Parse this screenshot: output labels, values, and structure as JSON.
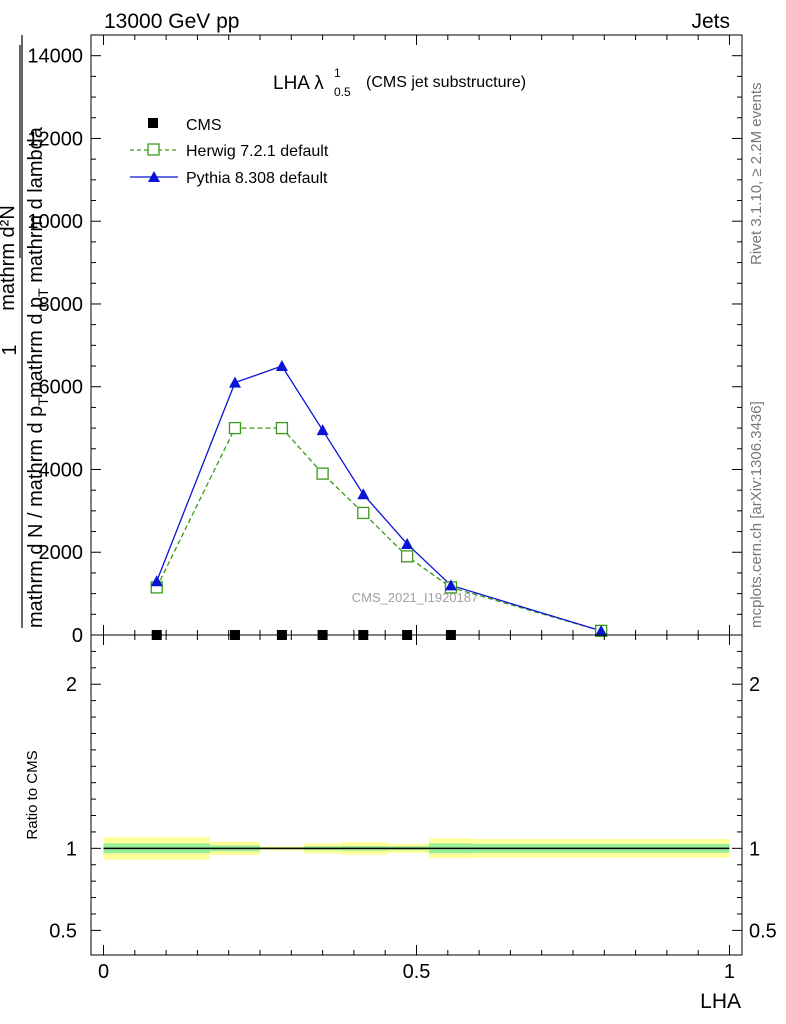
{
  "header": {
    "left": "13000 GeV pp",
    "right": "Jets"
  },
  "side_labels": {
    "rivet": "Rivet 3.1.10, ≥ 2.2M events",
    "mcplots": "mcplots.cern.ch [arXiv:1306.3436]"
  },
  "watermark": "CMS_2021_I1920187",
  "colors": {
    "cms": "#000000",
    "herwig": "#3a9a1a",
    "pythia": "#0a14d6",
    "band_outer": "#ffff99",
    "band_inner": "#99ee99"
  },
  "chart_data": [
    {
      "type": "line",
      "panel": "main",
      "title": {
        "main": "LHA λ",
        "sup": "1",
        "sub": "0.5",
        "suffix": "(CMS jet substructure)"
      },
      "ylabel": {
        "num_1": "1",
        "den_1": "mathrm d N / mathrm d p",
        "den_1_sub": "T",
        "num_2": "mathrm d²N",
        "den_2": "mathrm d p",
        "den_2_sub": "T",
        "den_2_tail": " mathrm d lambda"
      },
      "xlim": [
        -0.02,
        1.02
      ],
      "ylim": [
        0,
        14500
      ],
      "yticks": [
        0,
        2000,
        4000,
        6000,
        8000,
        10000,
        12000,
        14000
      ],
      "ytick_labels": [
        "0",
        "2000",
        "4000",
        "6000",
        "8000",
        "10000",
        "12000",
        "14000"
      ],
      "legend_position": "top-left",
      "series": [
        {
          "name": "CMS",
          "marker": "square-filled",
          "x": [
            0.085,
            0.21,
            0.285,
            0.35,
            0.415,
            0.485,
            0.555
          ],
          "y": [
            0,
            0,
            0,
            0,
            0,
            0,
            0
          ]
        },
        {
          "name": "Herwig 7.2.1 default",
          "marker": "square-open",
          "line": "dashed",
          "x": [
            0.085,
            0.21,
            0.285,
            0.35,
            0.415,
            0.485,
            0.555,
            0.795
          ],
          "y": [
            1150,
            5000,
            5000,
            3900,
            2950,
            1900,
            1150,
            100
          ]
        },
        {
          "name": "Pythia 8.308 default",
          "marker": "triangle-filled",
          "line": "solid",
          "x": [
            0.085,
            0.21,
            0.285,
            0.35,
            0.415,
            0.485,
            0.555,
            0.795
          ],
          "y": [
            1300,
            6100,
            6500,
            4950,
            3400,
            2200,
            1200,
            100
          ]
        }
      ]
    },
    {
      "type": "area",
      "panel": "ratio",
      "ylabel": "Ratio to CMS",
      "xlabel": "LHA",
      "xlim": [
        -0.02,
        1.02
      ],
      "ylim": [
        0.35,
        2.3
      ],
      "yticks": [
        0.5,
        1,
        2
      ],
      "ytick_labels": [
        "0.5",
        "1",
        "2"
      ],
      "xticks": [
        0,
        0.5,
        1
      ],
      "xtick_labels": [
        "0",
        "0.5",
        "1"
      ],
      "reference": 1,
      "bands": [
        {
          "x0": 0.0,
          "x1": 0.17,
          "outer": 0.068,
          "inner": 0.03
        },
        {
          "x0": 0.17,
          "x1": 0.25,
          "outer": 0.04,
          "inner": 0.018
        },
        {
          "x0": 0.25,
          "x1": 0.32,
          "outer": 0.012,
          "inner": 0.006
        },
        {
          "x0": 0.32,
          "x1": 0.38,
          "outer": 0.03,
          "inner": 0.012
        },
        {
          "x0": 0.38,
          "x1": 0.455,
          "outer": 0.038,
          "inner": 0.014
        },
        {
          "x0": 0.455,
          "x1": 0.52,
          "outer": 0.028,
          "inner": 0.012
        },
        {
          "x0": 0.52,
          "x1": 0.59,
          "outer": 0.06,
          "inner": 0.03
        },
        {
          "x0": 0.59,
          "x1": 1.0,
          "outer": 0.057,
          "inner": 0.027
        }
      ]
    }
  ]
}
